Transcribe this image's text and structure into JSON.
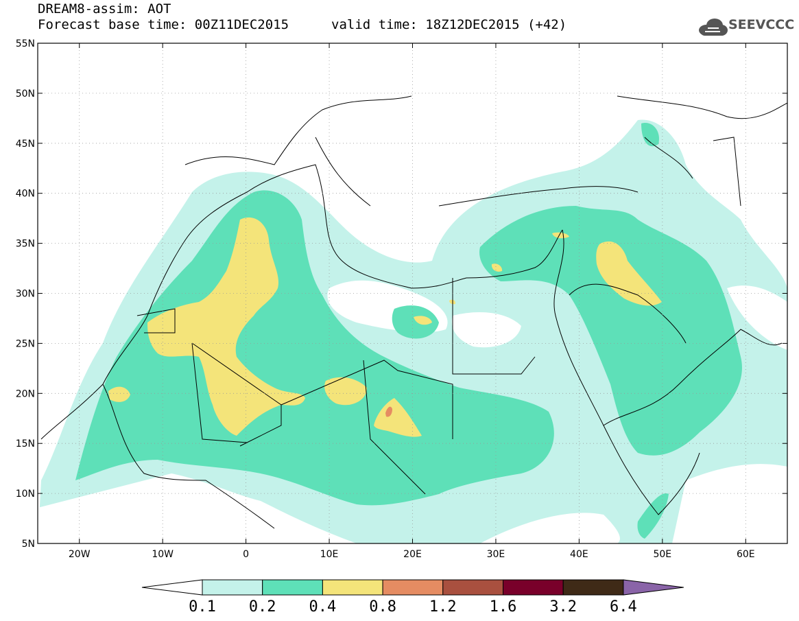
{
  "header": {
    "model": "DREAM8-assim: AOT",
    "base_time": "Forecast base time: 00Z11DEC2015",
    "valid_time": "valid time: 18Z12DEC2015 (+42)"
  },
  "logo": {
    "text": "SEEVCCC",
    "icon": "cloud-icon"
  },
  "map": {
    "lon_range": [
      -25,
      65
    ],
    "lat_range": [
      5,
      55
    ],
    "lat_ticks": [
      {
        "value": 55,
        "label": "55N"
      },
      {
        "value": 50,
        "label": "50N"
      },
      {
        "value": 45,
        "label": "45N"
      },
      {
        "value": 40,
        "label": "40N"
      },
      {
        "value": 35,
        "label": "35N"
      },
      {
        "value": 30,
        "label": "30N"
      },
      {
        "value": 25,
        "label": "25N"
      },
      {
        "value": 20,
        "label": "20N"
      },
      {
        "value": 15,
        "label": "15N"
      },
      {
        "value": 10,
        "label": "10N"
      },
      {
        "value": 5,
        "label": "5N"
      }
    ],
    "lon_ticks": [
      {
        "value": -20,
        "label": "20W"
      },
      {
        "value": -10,
        "label": "10W"
      },
      {
        "value": 0,
        "label": "0"
      },
      {
        "value": 10,
        "label": "10E"
      },
      {
        "value": 20,
        "label": "20E"
      },
      {
        "value": 30,
        "label": "30E"
      },
      {
        "value": 40,
        "label": "40E"
      },
      {
        "value": 50,
        "label": "50E"
      },
      {
        "value": 60,
        "label": "60E"
      }
    ],
    "grid": true
  },
  "colorbar": {
    "labels": [
      "0.1",
      "0.2",
      "0.4",
      "0.8",
      "1.2",
      "1.6",
      "3.2",
      "6.4"
    ],
    "colors": [
      "#ffffff",
      "#c4f2ea",
      "#5ee0b8",
      "#f4e47a",
      "#e58c62",
      "#a9503f",
      "#79002a",
      "#3f2a17",
      "#8a64a8"
    ]
  }
}
